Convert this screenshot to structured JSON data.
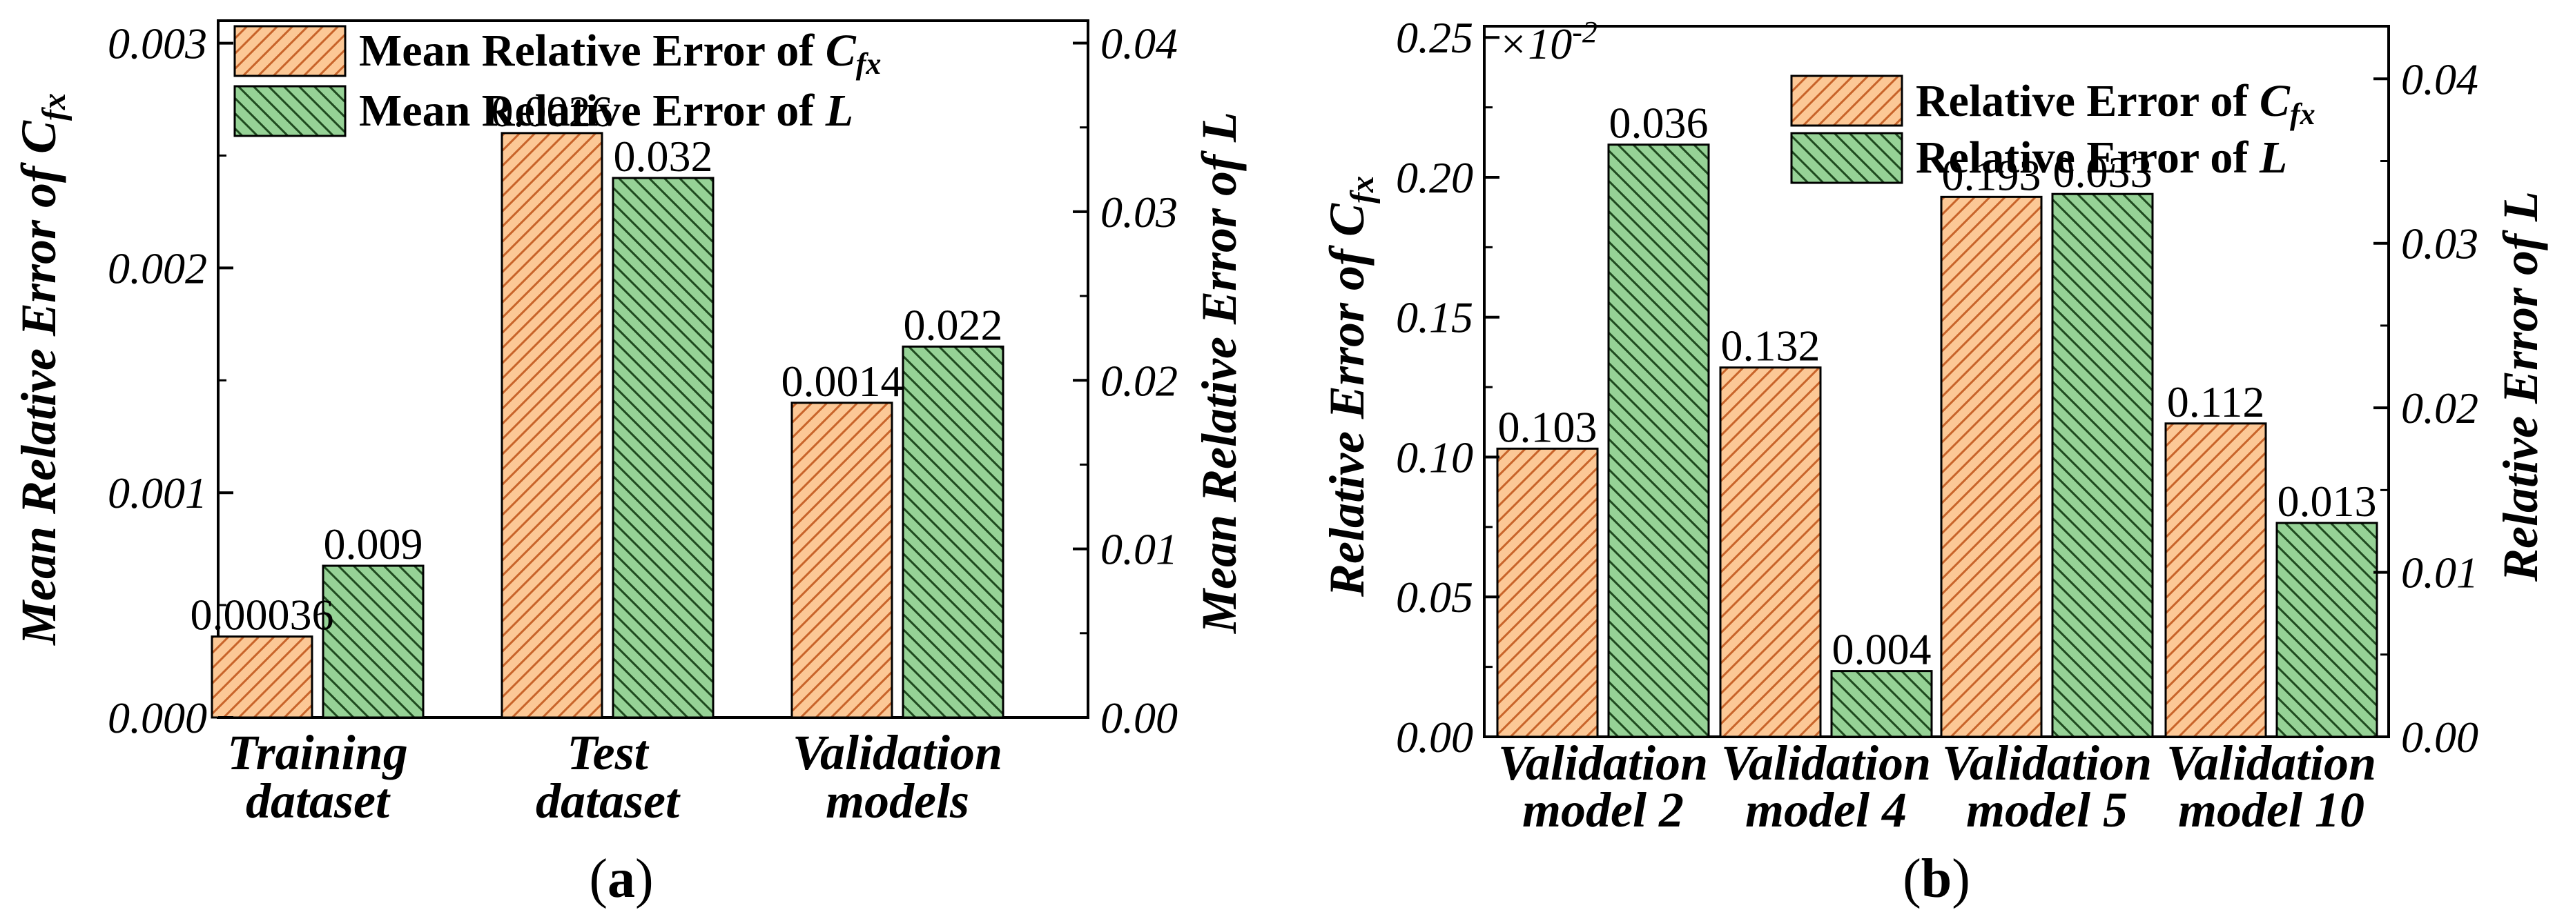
{
  "colors": {
    "series1_fill": "#fcc896",
    "series1_hatch": "#d0692a",
    "series2_fill": "#96d296",
    "series2_hatch": "#1f4a1f",
    "axis": "#000000"
  },
  "chart_data": [
    {
      "type": "bar",
      "panel_label_open": "(",
      "panel_label_letter": "a",
      "panel_label_close": ")",
      "categories": [
        {
          "line1": "Training",
          "line2": "dataset"
        },
        {
          "line1": "Test",
          "line2": "dataset"
        },
        {
          "line1": "Validation",
          "line2": "models"
        }
      ],
      "series": [
        {
          "name_prefix": "Mean Relative Error of ",
          "name_symbol": "C",
          "name_sub": "fx",
          "values": [
            0.00036,
            0.0026,
            0.0014
          ],
          "labels": [
            "0.00036",
            "0.0026",
            "0.0014"
          ],
          "axis": "left"
        },
        {
          "name_prefix": "Mean Relative Error of ",
          "name_symbol": "L",
          "name_sub": "",
          "values": [
            0.009,
            0.032,
            0.022
          ],
          "labels": [
            "0.009",
            "0.032",
            "0.022"
          ],
          "axis": "right"
        }
      ],
      "ylabel_left_prefix": "Mean Relative Error of ",
      "ylabel_left_symbol": "C",
      "ylabel_left_sub": "fx",
      "ylabel_right": "Mean Relative Error of L",
      "ylim_left": [
        0,
        0.0031
      ],
      "ylim_right": [
        0,
        0.04133
      ],
      "yticks_left": [
        "0.000",
        "0.001",
        "0.002",
        "0.003"
      ],
      "yticks_left_values": [
        0,
        0.001,
        0.002,
        0.003
      ],
      "yticks_right": [
        "0.00",
        "0.01",
        "0.02",
        "0.03",
        "0.04"
      ],
      "yticks_right_values": [
        0,
        0.01,
        0.02,
        0.03,
        0.04
      ],
      "legend_position": "top-left"
    },
    {
      "type": "bar",
      "panel_label_open": "(",
      "panel_label_letter": "b",
      "panel_label_close": ")",
      "scale_note_prefix": "×10",
      "scale_note_exp": "-2",
      "categories": [
        {
          "line1": "Validation",
          "line2": "model 2"
        },
        {
          "line1": "Validation",
          "line2": "model 4"
        },
        {
          "line1": "Validation",
          "line2": "model 5"
        },
        {
          "line1": "Validation",
          "line2": "model 10"
        }
      ],
      "series": [
        {
          "name_prefix": "Relative Error of ",
          "name_symbol": "C",
          "name_sub": "fx",
          "values": [
            0.103,
            0.132,
            0.193,
            0.112
          ],
          "labels": [
            "0.103",
            "0.132",
            "0.193",
            "0.112"
          ],
          "axis": "left"
        },
        {
          "name_prefix": "Relative Error of ",
          "name_symbol": "L",
          "name_sub": "",
          "values": [
            0.036,
            0.004,
            0.033,
            0.013
          ],
          "labels": [
            "0.036",
            "0.004",
            "0.033",
            "0.013"
          ],
          "axis": "right"
        }
      ],
      "ylabel_left_prefix": "Relative Error of ",
      "ylabel_left_symbol": "C",
      "ylabel_left_sub": "fx",
      "ylabel_right": "Relative Error of L",
      "ylim_left": [
        0,
        0.254
      ],
      "ylim_right": [
        0,
        0.0432
      ],
      "yticks_left": [
        "0.00",
        "0.05",
        "0.10",
        "0.15",
        "0.20",
        "0.25"
      ],
      "yticks_left_values": [
        0,
        0.05,
        0.1,
        0.15,
        0.2,
        0.25
      ],
      "yticks_right": [
        "0.00",
        "0.01",
        "0.02",
        "0.03",
        "0.04"
      ],
      "yticks_right_values": [
        0,
        0.01,
        0.02,
        0.03,
        0.04
      ],
      "legend_position": "top-right"
    }
  ]
}
